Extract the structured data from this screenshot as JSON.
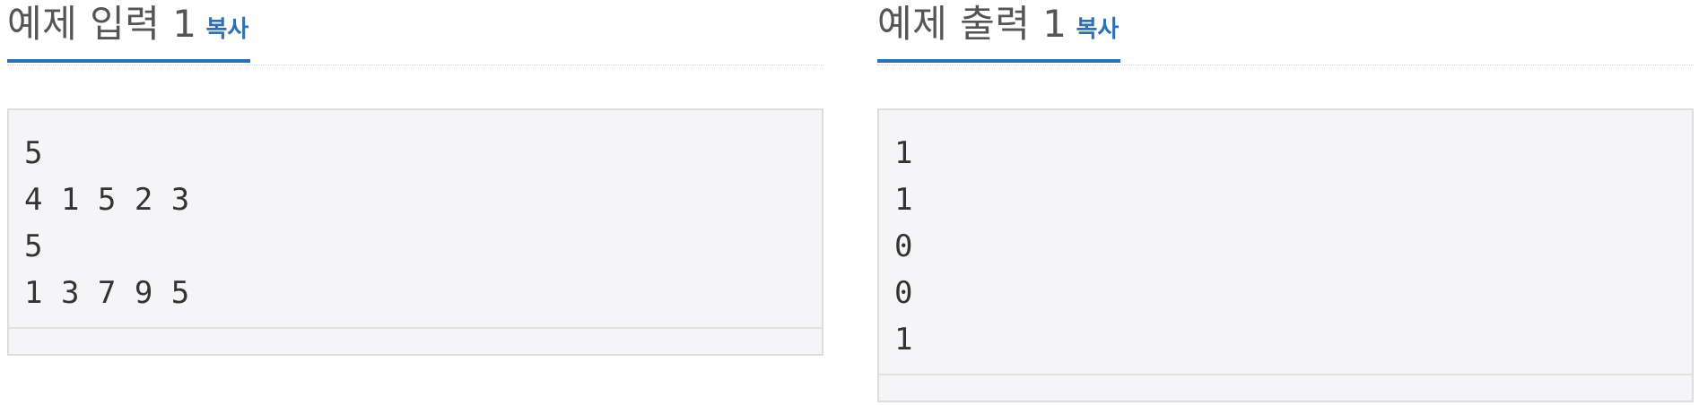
{
  "sample_input": {
    "title": "예제 입력 1",
    "copy_label": "복사",
    "lines": "5\n4 1 5 2 3\n5\n1 3 7 9 5"
  },
  "sample_output": {
    "title": "예제 출력 1",
    "copy_label": "복사",
    "lines": "1\n1\n0\n0\n1"
  },
  "colors": {
    "accent": "#2f6fb3",
    "title_text": "#555555",
    "code_background": "#f5f5f7",
    "code_border": "#dddddd"
  }
}
